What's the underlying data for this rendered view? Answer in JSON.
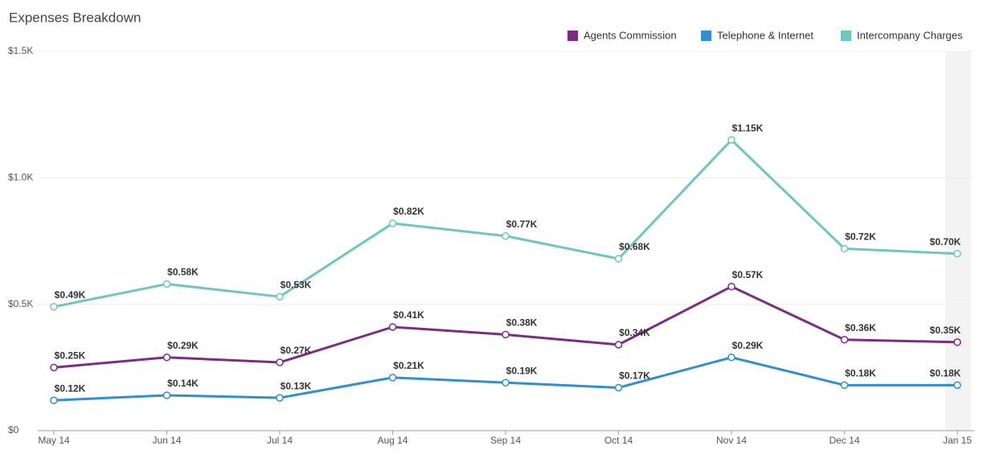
{
  "chart_data": {
    "type": "line",
    "title": "Expenses Breakdown",
    "categories": [
      "May 14",
      "Jun 14",
      "Jul 14",
      "Aug 14",
      "Sep 14",
      "Oct 14",
      "Nov 14",
      "Dec 14",
      "Jan 15"
    ],
    "series": [
      {
        "name": "Agents Commission",
        "color": "#7b2d82",
        "values": [
          250,
          290,
          270,
          410,
          380,
          340,
          570,
          360,
          350
        ],
        "value_labels": [
          "$0.25K",
          "$0.29K",
          "$0.27K",
          "$0.41K",
          "$0.38K",
          "$0.34K",
          "$0.57K",
          "$0.36K",
          "$0.35K"
        ]
      },
      {
        "name": "Telephone & Internet",
        "color": "#2f8fcf",
        "values": [
          120,
          140,
          130,
          210,
          190,
          170,
          290,
          180,
          180
        ],
        "value_labels": [
          "$0.12K",
          "$0.14K",
          "$0.13K",
          "$0.21K",
          "$0.19K",
          "$0.17K",
          "$0.29K",
          "$0.18K",
          "$0.18K"
        ]
      },
      {
        "name": "Intercompany Charges",
        "color": "#6ec7bd",
        "values": [
          490,
          580,
          530,
          820,
          770,
          680,
          1150,
          720,
          700
        ],
        "value_labels": [
          "$0.49K",
          "$0.58K",
          "$0.53K",
          "$0.82K",
          "$0.77K",
          "$0.68K",
          "$1.15K",
          "$0.72K",
          "$0.70K"
        ]
      }
    ],
    "ylim": [
      0,
      1500
    ],
    "yticks": [
      {
        "value": 0,
        "label": "$0"
      },
      {
        "value": 500,
        "label": "$0.5K"
      },
      {
        "value": 1000,
        "label": "$1.0K"
      },
      {
        "value": 1500,
        "label": "$1.5K"
      }
    ],
    "grid": true,
    "legend": "top-right"
  }
}
